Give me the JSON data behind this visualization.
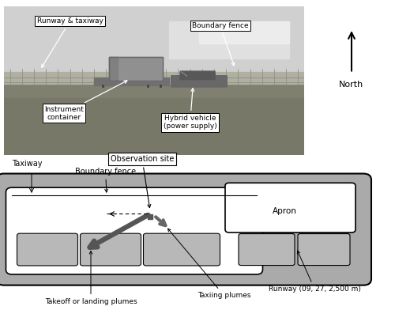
{
  "bg_color": "#ffffff",
  "gray_outer": "#aaaaaa",
  "white_inner": "#ffffff",
  "gray_rect": "#b8b8b8",
  "arrow_gray": "#666666",
  "labels": {
    "observation_site": "Observation site",
    "boundary_fence": "Boundary fence",
    "taxiway": "Taxiway",
    "apron": "Apron",
    "runway": "Runway (09, 27, 2,500 m)",
    "taxiing_plumes": "Taxiing plumes",
    "takeoff_plumes": "Takeoff or landing plumes",
    "north": "North",
    "runway_taxiway": "Runway & taxiway",
    "boundary_fence_photo": "Boundary fence",
    "instrument_container": "Instrument\ncontainer",
    "hybrid_vehicle": "Hybrid vehicle\n(power supply)"
  }
}
